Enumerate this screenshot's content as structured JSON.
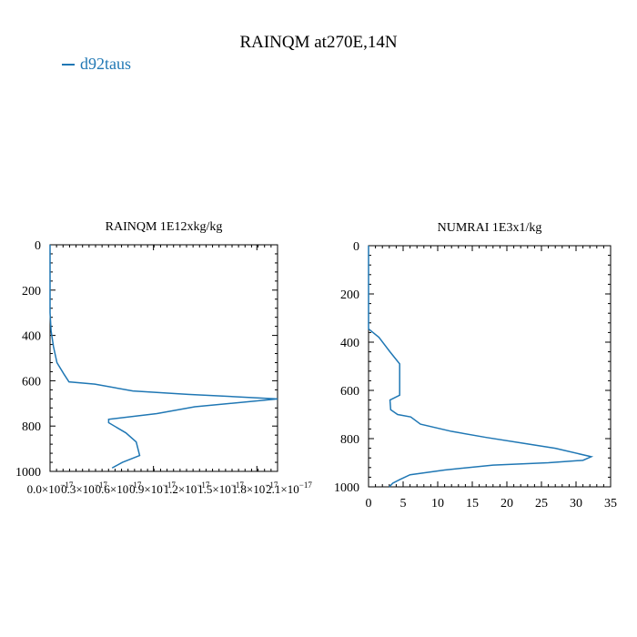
{
  "figure_title": "RAINQM at270E,14N",
  "legend": {
    "label": "d92taus",
    "color": "#1f77b4"
  },
  "chart_data": [
    {
      "type": "line",
      "title": "RAINQM  1E12xkg/kg",
      "xlabel": "",
      "ylabel": "",
      "xlim": [
        0,
        6.6e-18
      ],
      "ylim": [
        1000,
        0
      ],
      "y_inverted": true,
      "xticks": [
        0,
        3e-18,
        6e-18,
        9e-18,
        1.2e-17,
        1.5e-17,
        1.8e-17,
        2.1e-17
      ],
      "xtick_labels": [
        "0.0×10",
        "0.3×10",
        "0.6×10",
        "0.9×10",
        "1.2×10",
        "1.5×10",
        "1.8×10",
        "2.1×10"
      ],
      "xtick_exponent": "−17",
      "yticks": [
        0,
        200,
        400,
        600,
        800,
        1000
      ],
      "ytick_labels": [
        "0",
        "200",
        "400",
        "600",
        "800",
        "1000"
      ],
      "grid": false,
      "series": [
        {
          "name": "d92taus",
          "x": [
            0,
            0,
            3e-20,
            1e-19,
            2e-19,
            4e-19,
            5.5e-19,
            1.3e-18,
            2.4e-18,
            4e-18,
            6.6e-18,
            4.2e-18,
            3.1e-18,
            1.7e-18,
            1.7e-18,
            2.2e-18,
            2.5e-18,
            2.6e-18,
            2.1e-18,
            1.8e-18
          ],
          "y": [
            0,
            300,
            380,
            450,
            520,
            570,
            605,
            615,
            645,
            660,
            680,
            715,
            745,
            770,
            785,
            830,
            870,
            930,
            960,
            985
          ]
        }
      ]
    },
    {
      "type": "line",
      "title": "NUMRAI  1E3x1/kg",
      "xlabel": "",
      "ylabel": "",
      "xlim": [
        0,
        35
      ],
      "ylim": [
        1000,
        0
      ],
      "y_inverted": true,
      "xticks": [
        0,
        5,
        10,
        15,
        20,
        25,
        30,
        35
      ],
      "xtick_labels": [
        "0",
        "5",
        "10",
        "15",
        "20",
        "25",
        "30",
        "35"
      ],
      "yticks": [
        0,
        200,
        400,
        600,
        800,
        1000
      ],
      "ytick_labels": [
        "0",
        "200",
        "400",
        "600",
        "800",
        "1000"
      ],
      "grid": false,
      "series": [
        {
          "name": "d92taus",
          "x": [
            0,
            0,
            0,
            1.5,
            3.1,
            4.5,
            4.5,
            4.5,
            3.1,
            3.2,
            4.2,
            6.1,
            7.5,
            12,
            17,
            22.5,
            27,
            32.2,
            31,
            26,
            18,
            11,
            6,
            4.5,
            3.5,
            3
          ],
          "y": [
            0,
            200,
            345,
            380,
            440,
            490,
            520,
            620,
            640,
            680,
            700,
            710,
            740,
            770,
            795,
            820,
            840,
            875,
            890,
            900,
            910,
            930,
            950,
            970,
            985,
            1000
          ]
        }
      ]
    }
  ]
}
